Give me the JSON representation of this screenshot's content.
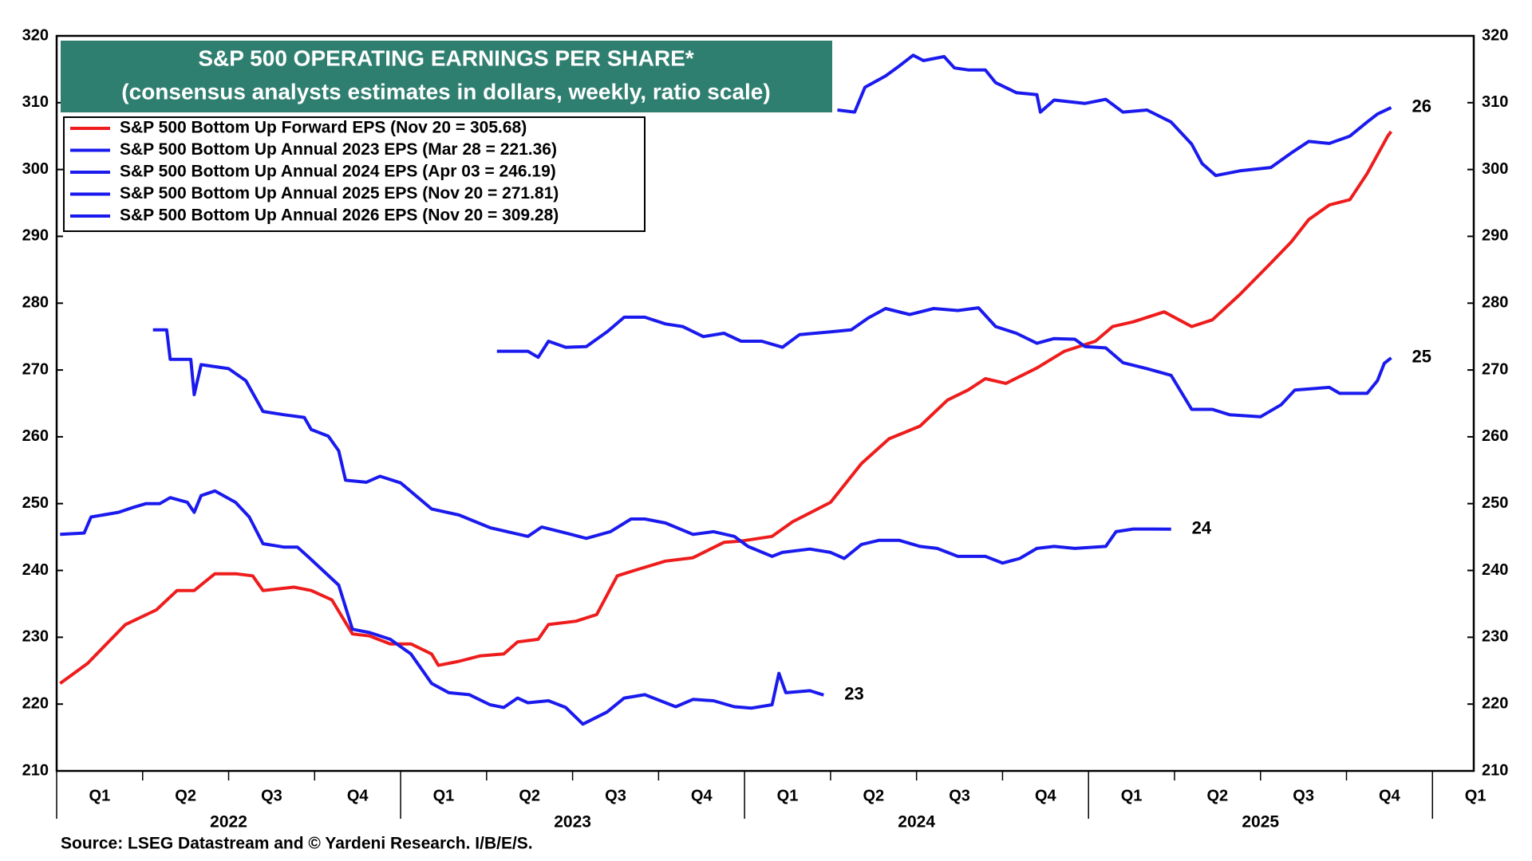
{
  "chart_data": {
    "type": "line",
    "title": "S&P 500 OPERATING EARNINGS PER SHARE*",
    "subtitle": "(consensus analysts estimates in dollars, weekly, ratio scale)",
    "source": "Source: LSEG Datastream and © Yardeni Research. I/B/E/S.",
    "xlim": [
      2022,
      2026.12
    ],
    "ylim": [
      210,
      320
    ],
    "yticks": [
      210,
      220,
      230,
      240,
      250,
      260,
      270,
      280,
      290,
      300,
      310,
      320
    ],
    "xticks": [
      2022,
      2022.25,
      2022.5,
      2022.75,
      2023,
      2023.25,
      2023.5,
      2023.75,
      2024,
      2024.25,
      2024.5,
      2024.75,
      2025,
      2025.25,
      2025.5,
      2025.75,
      2026
    ],
    "quarter_labels": [
      {
        "value": 2022.125,
        "label": "Q1"
      },
      {
        "value": 2022.375,
        "label": "Q2"
      },
      {
        "value": 2022.625,
        "label": "Q3"
      },
      {
        "value": 2022.875,
        "label": "Q4"
      },
      {
        "value": 2023.125,
        "label": "Q1"
      },
      {
        "value": 2023.375,
        "label": "Q2"
      },
      {
        "value": 2023.625,
        "label": "Q3"
      },
      {
        "value": 2023.875,
        "label": "Q4"
      },
      {
        "value": 2024.125,
        "label": "Q1"
      },
      {
        "value": 2024.375,
        "label": "Q2"
      },
      {
        "value": 2024.625,
        "label": "Q3"
      },
      {
        "value": 2024.875,
        "label": "Q4"
      },
      {
        "value": 2025.125,
        "label": "Q1"
      },
      {
        "value": 2025.375,
        "label": "Q2"
      },
      {
        "value": 2025.625,
        "label": "Q3"
      },
      {
        "value": 2025.875,
        "label": "Q4"
      },
      {
        "value": 2026.125,
        "label": "Q1"
      }
    ],
    "year_labels": [
      {
        "value": 2022.5,
        "label": "2022"
      },
      {
        "value": 2023.5,
        "label": "2023"
      },
      {
        "value": 2024.5,
        "label": "2024"
      },
      {
        "value": 2025.5,
        "label": "2025"
      }
    ],
    "series": [
      {
        "name": "S&P 500 Bottom Up Forward EPS (Nov 20 = 305.68)",
        "color": "#ee1c1c",
        "x": [
          2022.01,
          2022.09,
          2022.2,
          2022.29,
          2022.35,
          2022.4,
          2022.46,
          2022.52,
          2022.57,
          2022.6,
          2022.69,
          2022.74,
          2022.8,
          2022.86,
          2022.91,
          2022.97,
          2023.03,
          2023.09,
          2023.11,
          2023.17,
          2023.23,
          2023.3,
          2023.34,
          2023.4,
          2023.43,
          2023.51,
          2023.57,
          2023.63,
          2023.68,
          2023.77,
          2023.85,
          2023.94,
          2023.99,
          2024.08,
          2024.14,
          2024.25,
          2024.34,
          2024.42,
          2024.51,
          2024.59,
          2024.65,
          2024.7,
          2024.76,
          2024.85,
          2024.93,
          2025.02,
          2025.07,
          2025.13,
          2025.22,
          2025.3,
          2025.36,
          2025.44,
          2025.53,
          2025.59,
          2025.64,
          2025.7,
          2025.76,
          2025.81,
          2025.87,
          2025.88
        ],
        "values": [
          223.1,
          226.1,
          231.9,
          234.1,
          237,
          237,
          239.5,
          239.5,
          239.2,
          237,
          237.5,
          237,
          235.6,
          230.5,
          230.2,
          229,
          229,
          227.5,
          225.8,
          226.4,
          227.2,
          227.5,
          229.3,
          229.7,
          231.9,
          232.4,
          233.4,
          239.2,
          240,
          241.4,
          241.9,
          244.2,
          244.4,
          245.1,
          247.3,
          250.2,
          256,
          259.7,
          261.6,
          265.5,
          267,
          268.7,
          268,
          270.3,
          272.8,
          274.3,
          276.5,
          277.2,
          278.7,
          276.5,
          277.5,
          281.3,
          286,
          289.2,
          292.5,
          294.7,
          295.5,
          299.4,
          305,
          305.68
        ]
      },
      {
        "name": "S&P 500 Bottom Up Annual 2023 EPS (Mar 28 = 221.36)",
        "color": "#1a1aee",
        "end_label": "23",
        "x": [
          2022.01,
          2022.08,
          2022.1,
          2022.18,
          2022.22,
          2022.26,
          2022.3,
          2022.33,
          2022.38,
          2022.4,
          2022.42,
          2022.46,
          2022.52,
          2022.56,
          2022.6,
          2022.66,
          2022.7,
          2022.73,
          2022.77,
          2022.82,
          2022.86,
          2022.91,
          2022.97,
          2023.03,
          2023.09,
          2023.14,
          2023.2,
          2023.26,
          2023.3,
          2023.34,
          2023.37,
          2023.43,
          2023.48,
          2023.53,
          2023.6,
          2023.65,
          2023.71,
          2023.8,
          2023.85,
          2023.91,
          2023.97,
          2024.02,
          2024.08,
          2024.1,
          2024.12,
          2024.19,
          2024.23
        ],
        "values": [
          245.4,
          245.6,
          248,
          248.7,
          249.4,
          250,
          250,
          250.9,
          250.2,
          248.7,
          251.2,
          251.9,
          250.2,
          248,
          244,
          243.5,
          243.5,
          242.1,
          240.2,
          237.8,
          231.2,
          230.7,
          229.7,
          227.5,
          223.1,
          221.7,
          221.4,
          219.9,
          219.5,
          220.9,
          220.2,
          220.5,
          219.5,
          217,
          218.8,
          220.9,
          221.4,
          219.6,
          220.7,
          220.5,
          219.6,
          219.4,
          219.9,
          224.6,
          221.7,
          222,
          221.36
        ]
      },
      {
        "name": "S&P 500 Bottom Up Annual 2024 EPS (Apr 03 = 246.19)",
        "color": "#1a1aee",
        "end_label": "24",
        "x": [
          2022.28,
          2022.32,
          2022.33,
          2022.39,
          2022.4,
          2022.42,
          2022.5,
          2022.55,
          2022.6,
          2022.66,
          2022.72,
          2022.74,
          2022.79,
          2022.82,
          2022.84,
          2022.9,
          2022.94,
          2023.0,
          2023.09,
          2023.17,
          2023.26,
          2023.31,
          2023.37,
          2023.41,
          2023.48,
          2023.54,
          2023.61,
          2023.67,
          2023.71,
          2023.77,
          2023.85,
          2023.91,
          2023.97,
          2024.01,
          2024.08,
          2024.11,
          2024.19,
          2024.25,
          2024.29,
          2024.34,
          2024.39,
          2024.45,
          2024.51,
          2024.56,
          2024.62,
          2024.7,
          2024.75,
          2024.8,
          2024.85,
          2024.9,
          2024.96,
          2025.05,
          2025.08,
          2025.13,
          2025.19,
          2025.24
        ],
        "values": [
          276,
          276,
          271.6,
          271.6,
          266.3,
          270.8,
          270.2,
          268.4,
          263.8,
          263.3,
          262.9,
          261.1,
          260.1,
          257.9,
          253.5,
          253.2,
          254.1,
          253.1,
          249.2,
          248.3,
          246.4,
          245.8,
          245.1,
          246.5,
          245.6,
          244.8,
          245.8,
          247.7,
          247.7,
          247.1,
          245.4,
          245.8,
          245.1,
          243.6,
          242.1,
          242.7,
          243.2,
          242.7,
          241.8,
          243.9,
          244.5,
          244.5,
          243.6,
          243.3,
          242.1,
          242.1,
          241.1,
          241.8,
          243.3,
          243.6,
          243.3,
          243.6,
          245.8,
          246.2,
          246.2,
          246.19
        ]
      },
      {
        "name": "S&P 500 Bottom Up Annual 2025 EPS (Nov 20 = 271.81)",
        "color": "#1a1aee",
        "end_label": "25",
        "x": [
          2023.28,
          2023.37,
          2023.4,
          2023.43,
          2023.48,
          2023.54,
          2023.6,
          2023.65,
          2023.71,
          2023.77,
          2023.82,
          2023.88,
          2023.94,
          2023.99,
          2024.05,
          2024.11,
          2024.16,
          2024.25,
          2024.31,
          2024.36,
          2024.41,
          2024.48,
          2024.55,
          2024.62,
          2024.68,
          2024.73,
          2024.79,
          2024.85,
          2024.9,
          2024.96,
          2024.99,
          2025.05,
          2025.1,
          2025.17,
          2025.24,
          2025.3,
          2025.36,
          2025.41,
          2025.5,
          2025.56,
          2025.6,
          2025.7,
          2025.73,
          2025.81,
          2025.84,
          2025.86,
          2025.88
        ],
        "values": [
          272.8,
          272.8,
          271.9,
          274.3,
          273.4,
          273.5,
          275.7,
          277.9,
          277.9,
          276.9,
          276.5,
          275,
          275.5,
          274.3,
          274.3,
          273.4,
          275.3,
          275.7,
          276,
          277.8,
          279.2,
          278.3,
          279.2,
          278.9,
          279.3,
          276.5,
          275.5,
          274,
          274.7,
          274.6,
          273.5,
          273.3,
          271.1,
          270.2,
          269.2,
          264.1,
          264.1,
          263.3,
          263,
          264.8,
          267,
          267.4,
          266.5,
          266.5,
          268.4,
          271,
          271.81
        ]
      },
      {
        "name": "S&P 500 Bottom Up Annual 2026 EPS (Nov 20 = 309.28)",
        "color": "#1a1aee",
        "end_label": "26",
        "x": [
          2024.27,
          2024.32,
          2024.35,
          2024.41,
          2024.45,
          2024.49,
          2024.52,
          2024.55,
          2024.58,
          2024.61,
          2024.65,
          2024.7,
          2024.73,
          2024.79,
          2024.85,
          2024.86,
          2024.9,
          2024.99,
          2025.05,
          2025.1,
          2025.17,
          2025.24,
          2025.3,
          2025.33,
          2025.37,
          2025.44,
          2025.53,
          2025.59,
          2025.64,
          2025.7,
          2025.76,
          2025.81,
          2025.84,
          2025.88
        ],
        "values": [
          308.9,
          308.6,
          312.3,
          314,
          315.5,
          317.1,
          316.3,
          316.6,
          316.9,
          315.2,
          314.9,
          314.9,
          313,
          311.5,
          311.2,
          308.6,
          310.4,
          309.9,
          310.5,
          308.6,
          308.9,
          307.1,
          303.8,
          300.9,
          299.1,
          299.8,
          300.3,
          302.5,
          304.2,
          303.9,
          305,
          307.1,
          308.3,
          309.28
        ]
      }
    ]
  }
}
